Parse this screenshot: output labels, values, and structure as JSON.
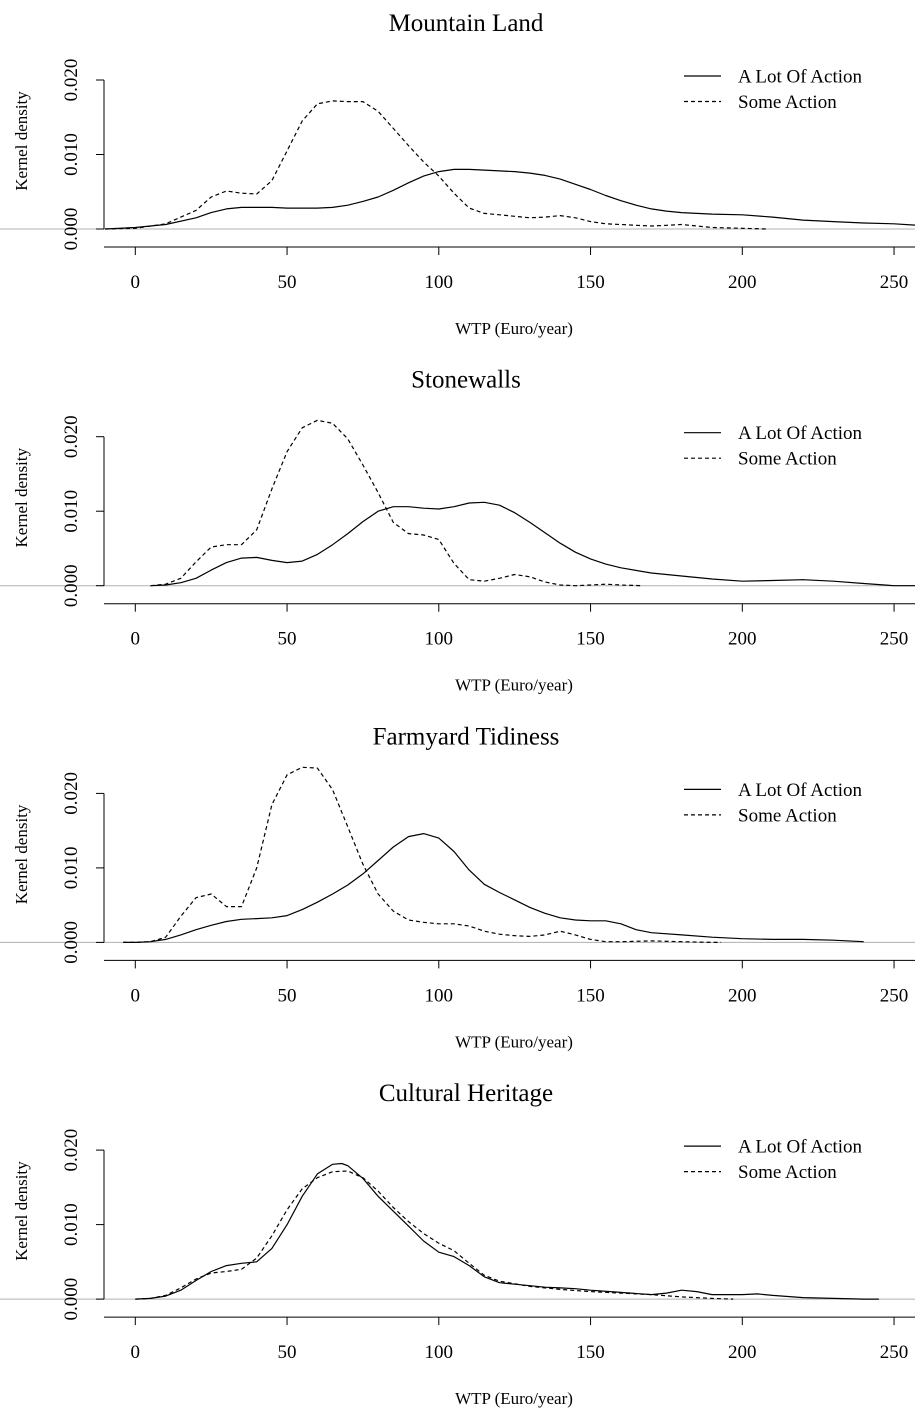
{
  "chart_data": [
    {
      "type": "line",
      "title": "Mountain Land",
      "xlabel": "WTP (Euro/year)",
      "ylabel": "Kernel density",
      "xlim": [
        -10,
        258
      ],
      "ylim": [
        -0.0004,
        0.0235
      ],
      "xticks": [
        "0",
        "50",
        "100",
        "150",
        "200",
        "250"
      ],
      "yticks": [
        "0.000",
        "0.010",
        "0.020"
      ],
      "legend": {
        "position": "top-right",
        "entries": [
          "A Lot Of Action",
          "Some Action"
        ]
      },
      "series": [
        {
          "name": "A Lot Of Action",
          "style": "solid",
          "x": [
            -10,
            0,
            10,
            20,
            25,
            30,
            35,
            40,
            45,
            50,
            55,
            60,
            65,
            70,
            75,
            80,
            85,
            90,
            95,
            100,
            105,
            110,
            115,
            120,
            125,
            130,
            135,
            140,
            145,
            150,
            155,
            160,
            165,
            170,
            175,
            180,
            185,
            190,
            200,
            210,
            220,
            230,
            240,
            250,
            258
          ],
          "y": [
            0.0,
            0.0002,
            0.0006,
            0.0015,
            0.0022,
            0.0027,
            0.0029,
            0.0029,
            0.0029,
            0.0028,
            0.0028,
            0.0028,
            0.0029,
            0.0032,
            0.0037,
            0.0043,
            0.0052,
            0.0062,
            0.0071,
            0.0077,
            0.008,
            0.008,
            0.0079,
            0.0078,
            0.0077,
            0.0075,
            0.0072,
            0.0067,
            0.006,
            0.0053,
            0.0045,
            0.0038,
            0.0032,
            0.0027,
            0.0024,
            0.0022,
            0.0021,
            0.002,
            0.0019,
            0.0016,
            0.0012,
            0.001,
            0.0008,
            0.0007,
            0.0005
          ]
        },
        {
          "name": "Some Action",
          "style": "dashed",
          "x": [
            -10,
            0,
            10,
            20,
            25,
            30,
            35,
            40,
            45,
            50,
            55,
            60,
            65,
            70,
            75,
            80,
            85,
            90,
            95,
            100,
            105,
            110,
            115,
            120,
            125,
            130,
            135,
            140,
            145,
            150,
            155,
            160,
            165,
            170,
            175,
            180,
            185,
            190,
            200,
            208
          ],
          "y": [
            0.0,
            0.0001,
            0.0007,
            0.0025,
            0.0043,
            0.0051,
            0.0048,
            0.0047,
            0.0065,
            0.0105,
            0.0145,
            0.0168,
            0.0172,
            0.0171,
            0.0171,
            0.0158,
            0.0135,
            0.0112,
            0.009,
            0.0071,
            0.0048,
            0.0028,
            0.0021,
            0.0019,
            0.0017,
            0.0015,
            0.0016,
            0.0018,
            0.0015,
            0.001,
            0.0007,
            0.0006,
            0.0005,
            0.0004,
            0.0005,
            0.0006,
            0.0004,
            0.0002,
            0.0001,
            0.0
          ]
        }
      ]
    },
    {
      "type": "line",
      "title": "Stonewalls",
      "xlabel": "WTP (Euro/year)",
      "ylabel": "Kernel density",
      "xlim": [
        -10,
        258
      ],
      "ylim": [
        -0.0004,
        0.0235
      ],
      "xticks": [
        "0",
        "50",
        "100",
        "150",
        "200",
        "250"
      ],
      "yticks": [
        "0.000",
        "0.010",
        "0.020"
      ],
      "legend": {
        "position": "top-right",
        "entries": [
          "A Lot Of Action",
          "Some Action"
        ]
      },
      "series": [
        {
          "name": "A Lot Of Action",
          "style": "solid",
          "x": [
            5,
            10,
            15,
            20,
            25,
            30,
            35,
            40,
            45,
            50,
            55,
            60,
            65,
            70,
            75,
            80,
            85,
            90,
            95,
            100,
            105,
            110,
            115,
            120,
            125,
            130,
            135,
            140,
            145,
            150,
            155,
            160,
            170,
            180,
            190,
            200,
            210,
            220,
            230,
            240,
            250,
            258
          ],
          "y": [
            0.0,
            0.0001,
            0.0004,
            0.001,
            0.0021,
            0.0031,
            0.0037,
            0.0038,
            0.0034,
            0.0031,
            0.0033,
            0.0042,
            0.0055,
            0.007,
            0.0086,
            0.01,
            0.0106,
            0.0106,
            0.0104,
            0.0103,
            0.0106,
            0.0111,
            0.0112,
            0.0108,
            0.0098,
            0.0085,
            0.0071,
            0.0057,
            0.0045,
            0.0036,
            0.0029,
            0.0024,
            0.0017,
            0.0013,
            0.0009,
            0.0006,
            0.0007,
            0.0008,
            0.0006,
            0.0003,
            0.0,
            0.0
          ]
        },
        {
          "name": "Some Action",
          "style": "dashed",
          "x": [
            5,
            10,
            15,
            20,
            25,
            30,
            35,
            40,
            45,
            50,
            55,
            60,
            65,
            70,
            75,
            80,
            85,
            90,
            95,
            100,
            105,
            110,
            115,
            120,
            125,
            130,
            135,
            140,
            145,
            150,
            155,
            160,
            167
          ],
          "y": [
            0.0,
            0.0002,
            0.001,
            0.0032,
            0.0052,
            0.0055,
            0.0055,
            0.0075,
            0.013,
            0.018,
            0.0212,
            0.0222,
            0.0218,
            0.0197,
            0.0162,
            0.0125,
            0.0085,
            0.007,
            0.0068,
            0.0062,
            0.003,
            0.0008,
            0.0006,
            0.001,
            0.0015,
            0.0012,
            0.0005,
            0.0001,
            0.0,
            0.0001,
            0.0002,
            0.0001,
            0.0
          ]
        }
      ]
    },
    {
      "type": "line",
      "title": "Farmyard Tidiness",
      "xlabel": "WTP (Euro/year)",
      "ylabel": "Kernel density",
      "xlim": [
        -10,
        258
      ],
      "ylim": [
        -0.0004,
        0.0235
      ],
      "xticks": [
        "0",
        "50",
        "100",
        "150",
        "200",
        "250"
      ],
      "yticks": [
        "0.000",
        "0.010",
        "0.020"
      ],
      "legend": {
        "position": "top-right",
        "entries": [
          "A Lot Of Action",
          "Some Action"
        ]
      },
      "series": [
        {
          "name": "A Lot Of Action",
          "style": "solid",
          "x": [
            -4,
            0,
            5,
            10,
            15,
            20,
            25,
            30,
            35,
            40,
            45,
            50,
            55,
            60,
            65,
            70,
            75,
            80,
            85,
            90,
            95,
            100,
            105,
            110,
            115,
            120,
            125,
            130,
            135,
            140,
            145,
            150,
            155,
            160,
            165,
            170,
            180,
            190,
            200,
            210,
            220,
            230,
            240
          ],
          "y": [
            0.0,
            0.0,
            0.0001,
            0.0004,
            0.001,
            0.0017,
            0.0023,
            0.0028,
            0.0031,
            0.0032,
            0.0033,
            0.0036,
            0.0044,
            0.0054,
            0.0065,
            0.0077,
            0.0092,
            0.011,
            0.0128,
            0.0142,
            0.0146,
            0.014,
            0.0122,
            0.0097,
            0.0078,
            0.0067,
            0.0057,
            0.0047,
            0.0039,
            0.0033,
            0.003,
            0.0029,
            0.0029,
            0.0025,
            0.0017,
            0.0013,
            0.001,
            0.0007,
            0.0005,
            0.0004,
            0.0004,
            0.0003,
            0.0001
          ]
        },
        {
          "name": "Some Action",
          "style": "dashed",
          "x": [
            -4,
            0,
            5,
            10,
            15,
            20,
            25,
            30,
            35,
            40,
            45,
            50,
            55,
            60,
            65,
            70,
            75,
            80,
            85,
            90,
            95,
            100,
            105,
            110,
            115,
            120,
            125,
            130,
            135,
            140,
            145,
            150,
            155,
            160,
            170,
            180,
            190,
            193
          ],
          "y": [
            0.0,
            0.0,
            0.0001,
            0.0007,
            0.0035,
            0.006,
            0.0065,
            0.0048,
            0.0048,
            0.01,
            0.0185,
            0.0225,
            0.0235,
            0.0234,
            0.0205,
            0.0155,
            0.0105,
            0.0065,
            0.0042,
            0.003,
            0.0027,
            0.0025,
            0.0025,
            0.0022,
            0.0015,
            0.0011,
            0.0009,
            0.0008,
            0.001,
            0.0015,
            0.001,
            0.0004,
            0.0001,
            0.0001,
            0.0002,
            0.0001,
            0.0,
            0.0
          ]
        }
      ]
    },
    {
      "type": "line",
      "title": "Cultural Heritage",
      "xlabel": "WTP (Euro/year)",
      "ylabel": "Kernel density",
      "xlim": [
        -10,
        258
      ],
      "ylim": [
        -0.0004,
        0.0235
      ],
      "xticks": [
        "0",
        "50",
        "100",
        "150",
        "200",
        "250"
      ],
      "yticks": [
        "0.000",
        "0.010",
        "0.020"
      ],
      "legend": {
        "position": "top-right",
        "entries": [
          "A Lot Of Action",
          "Some Action"
        ]
      },
      "series": [
        {
          "name": "A Lot Of Action",
          "style": "solid",
          "x": [
            0,
            5,
            10,
            15,
            20,
            25,
            30,
            35,
            40,
            45,
            50,
            55,
            60,
            65,
            68,
            70,
            75,
            80,
            85,
            90,
            95,
            100,
            105,
            110,
            115,
            120,
            125,
            130,
            135,
            140,
            145,
            150,
            160,
            170,
            175,
            180,
            185,
            190,
            200,
            205,
            210,
            220,
            230,
            240,
            245
          ],
          "y": [
            0.0,
            0.0001,
            0.0004,
            0.0012,
            0.0025,
            0.0037,
            0.0045,
            0.0048,
            0.005,
            0.0068,
            0.01,
            0.0138,
            0.0168,
            0.0181,
            0.0182,
            0.0179,
            0.0162,
            0.0138,
            0.0118,
            0.0098,
            0.0078,
            0.0063,
            0.0057,
            0.0045,
            0.003,
            0.0022,
            0.002,
            0.0018,
            0.0016,
            0.0015,
            0.0014,
            0.0012,
            0.0009,
            0.0006,
            0.0008,
            0.0012,
            0.001,
            0.0006,
            0.0006,
            0.0007,
            0.0005,
            0.0002,
            0.0001,
            0.0,
            0.0
          ]
        },
        {
          "name": "Some Action",
          "style": "dashed",
          "x": [
            0,
            5,
            10,
            15,
            20,
            25,
            30,
            35,
            40,
            45,
            50,
            55,
            60,
            65,
            70,
            75,
            80,
            85,
            90,
            95,
            100,
            105,
            110,
            115,
            120,
            130,
            140,
            150,
            160,
            170,
            180,
            190,
            197
          ],
          "y": [
            0.0,
            0.0001,
            0.0005,
            0.0015,
            0.0027,
            0.0035,
            0.0037,
            0.004,
            0.0055,
            0.0085,
            0.012,
            0.0148,
            0.0163,
            0.0171,
            0.0172,
            0.0163,
            0.0145,
            0.0123,
            0.0104,
            0.0088,
            0.0075,
            0.0065,
            0.0048,
            0.0032,
            0.0024,
            0.0017,
            0.0013,
            0.001,
            0.0008,
            0.0006,
            0.0003,
            0.0001,
            0.0
          ]
        }
      ]
    }
  ]
}
